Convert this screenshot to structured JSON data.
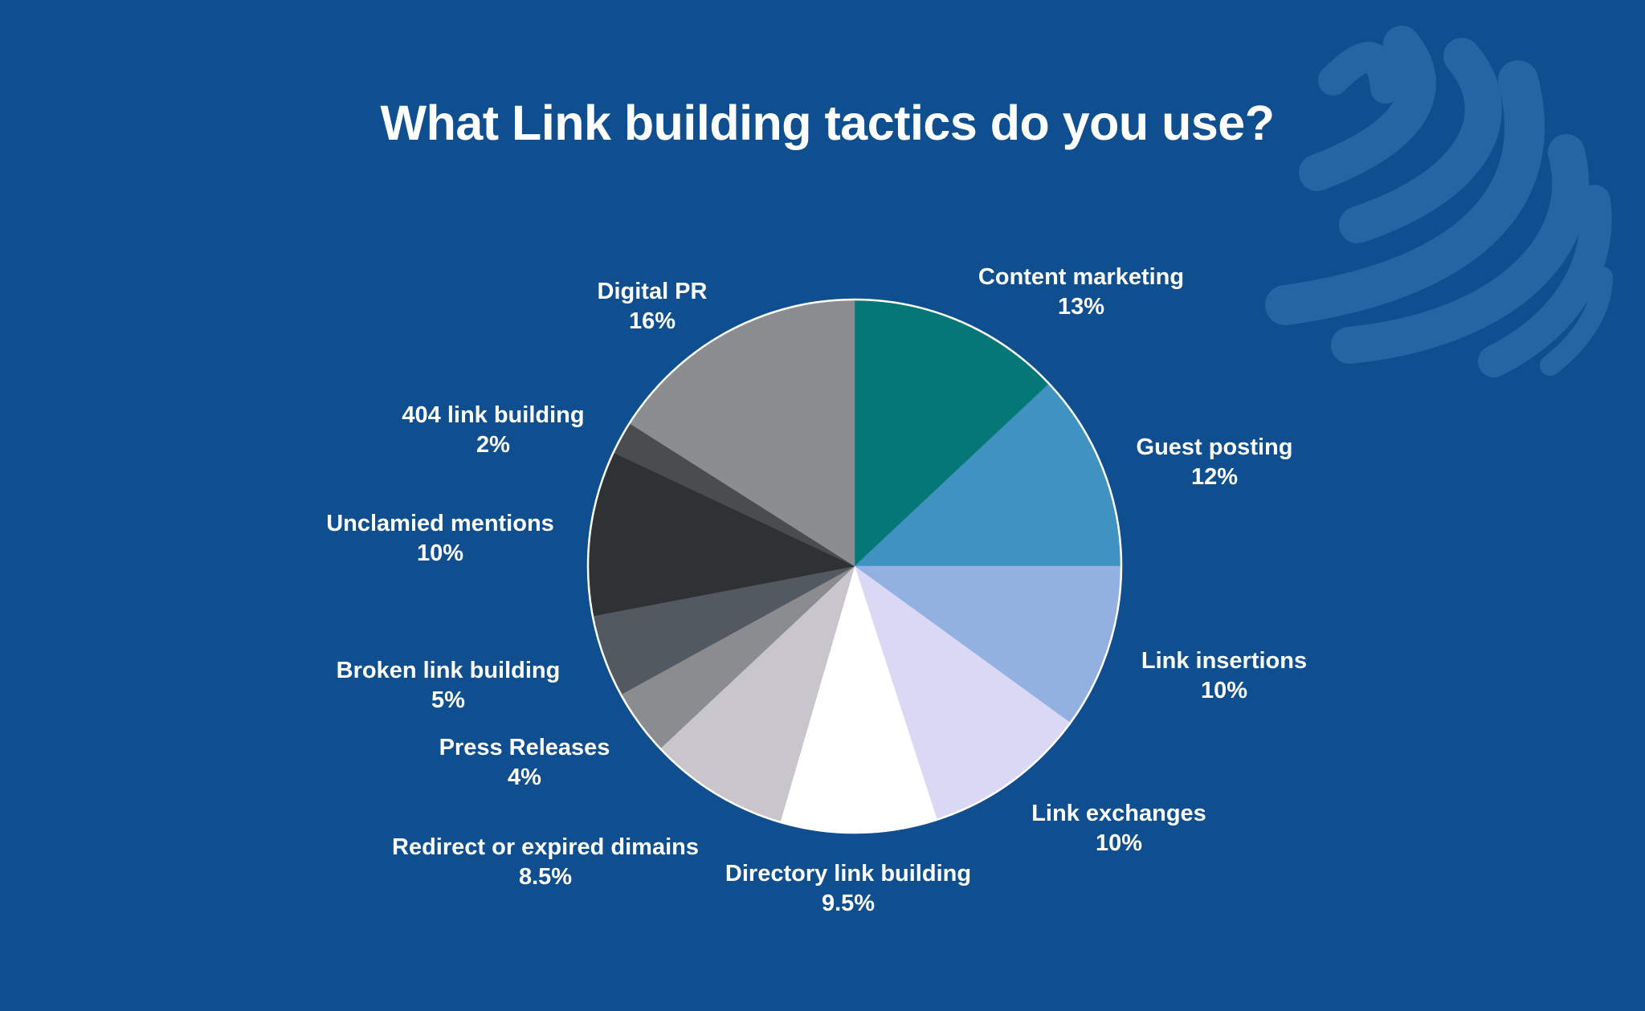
{
  "colors": {
    "background": "#0f4e8f",
    "watermark": "#2a6aa8"
  },
  "icons": {
    "watermark": "globe-swoosh-icon"
  },
  "chart_data": {
    "type": "pie",
    "title": "What Link building tactics do you use?",
    "start_angle_deg": 0,
    "direction": "clockwise",
    "slices": [
      {
        "label": "Content marketing",
        "value_label": "13%",
        "value": 13,
        "color": "#047776"
      },
      {
        "label": "Guest posting",
        "value_label": "12%",
        "value": 12,
        "color": "#4093c1"
      },
      {
        "label": "Link insertions",
        "value_label": "10%",
        "value": 10,
        "color": "#92b1e1"
      },
      {
        "label": "Link exchanges",
        "value_label": "10%",
        "value": 10,
        "color": "#dad8f4"
      },
      {
        "label": "Directory link building",
        "value_label": "9.5%",
        "value": 9.5,
        "color": "#ffffff"
      },
      {
        "label": "Redirect or expired dimains",
        "value_label": "8.5%",
        "value": 8.5,
        "color": "#c8c5cc"
      },
      {
        "label": "Press Releases",
        "value_label": "4%",
        "value": 4,
        "color": "#8b8c90"
      },
      {
        "label": "Broken link building",
        "value_label": "5%",
        "value": 5,
        "color": "#535960"
      },
      {
        "label": "Unclamied mentions",
        "value_label": "10%",
        "value": 10,
        "color": "#2e3235"
      },
      {
        "label": "404 link building",
        "value_label": "2%",
        "value": 2,
        "color": "#4a4c50"
      },
      {
        "label": "Digital PR",
        "value_label": "16%",
        "value": 16,
        "color": "#8b8d90"
      }
    ]
  }
}
